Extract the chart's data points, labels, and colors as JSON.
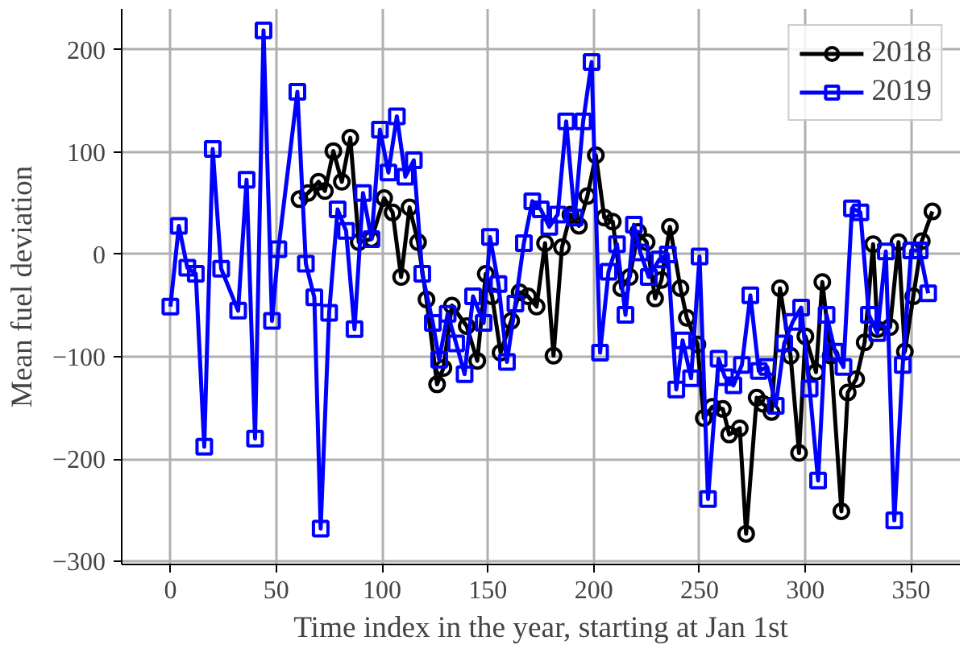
{
  "chart_data": {
    "type": "line",
    "xlabel": "Time index in the year, starting at Jan 1st",
    "ylabel": "Mean fuel deviation",
    "xlim": [
      -23,
      373
    ],
    "ylim": [
      -303,
      240
    ],
    "xticks": [
      0,
      50,
      100,
      150,
      200,
      250,
      300,
      350
    ],
    "yticks": [
      -300,
      -200,
      -100,
      0,
      100,
      200
    ],
    "grid": true,
    "legend": "top right",
    "line_style": "solid",
    "series": [
      {
        "name": "2018",
        "color": "#000000",
        "marker": "circle",
        "x": [
          61,
          65,
          70,
          73,
          77,
          81,
          85,
          89,
          95,
          101,
          105,
          109,
          113,
          117,
          121,
          126,
          129,
          133,
          140,
          145,
          149,
          152,
          156,
          161,
          165,
          169,
          173,
          177,
          181,
          185,
          189,
          193,
          197,
          201,
          205,
          209,
          213,
          217,
          221,
          225,
          229,
          232,
          236,
          241,
          244,
          249,
          252,
          256,
          261,
          264,
          269,
          272,
          277,
          280,
          284,
          288,
          293,
          297,
          300,
          305,
          308,
          312,
          317,
          320,
          324,
          328,
          332,
          334,
          340,
          344,
          347,
          351,
          355,
          360
        ],
        "values": [
          54,
          60,
          71,
          62,
          101,
          71,
          114,
          12,
          15,
          55,
          41,
          -22,
          46,
          12,
          -44,
          -127,
          -111,
          -50,
          -70,
          -104,
          -19,
          -41,
          -96,
          -65,
          -37,
          -41,
          -51,
          11,
          -99,
          7,
          39,
          28,
          57,
          97,
          36,
          32,
          -33,
          -22,
          22,
          12,
          -43,
          -25,
          27,
          -33,
          -62,
          -88,
          -160,
          -149,
          -151,
          -176,
          -170,
          -273,
          -140,
          -146,
          -154,
          -33,
          -99,
          -194,
          -80,
          -115,
          -27,
          -99,
          -251,
          -135,
          -122,
          -86,
          10,
          -73,
          -71,
          12,
          -95,
          -41,
          13,
          42
        ]
      },
      {
        "name": "2019",
        "color": "#0000ff",
        "marker": "square",
        "x": [
          0,
          4,
          8,
          12,
          16,
          20,
          24,
          32,
          36,
          40,
          44,
          48,
          51,
          60,
          64,
          68,
          71,
          75,
          79,
          83,
          87,
          91,
          95,
          99,
          103,
          107,
          111,
          115,
          119,
          124,
          127,
          131,
          135,
          139,
          143,
          148,
          151,
          155,
          159,
          163,
          167,
          171,
          175,
          179,
          183,
          187,
          191,
          195,
          199,
          203,
          207,
          211,
          215,
          219,
          222,
          226,
          231,
          235,
          239,
          242,
          246,
          250,
          254,
          259,
          262,
          266,
          270,
          274,
          278,
          282,
          286,
          290,
          294,
          298,
          302,
          306,
          310,
          314,
          318,
          322,
          326,
          330,
          334,
          338,
          342,
          346,
          350,
          354,
          358
        ],
        "values": [
          -51,
          28,
          -13,
          -19,
          -188,
          103,
          -14,
          -55,
          73,
          -180,
          219,
          -65,
          5,
          159,
          -9,
          -42,
          -268,
          -57,
          44,
          23,
          -73,
          60,
          15,
          122,
          80,
          135,
          76,
          92,
          -19,
          -67,
          -103,
          -58,
          -87,
          -117,
          -41,
          -67,
          17,
          -29,
          -105,
          -48,
          11,
          52,
          44,
          27,
          39,
          130,
          36,
          130,
          188,
          -96,
          -17,
          10,
          -59,
          29,
          2,
          -22,
          -5,
          0,
          -132,
          -84,
          -121,
          -2,
          -239,
          -102,
          -120,
          -128,
          -108,
          -40,
          -114,
          -110,
          -148,
          -87,
          -66,
          -52,
          -131,
          -221,
          -59,
          -95,
          -110,
          45,
          41,
          -59,
          -77,
          3,
          -260,
          -108,
          4,
          4,
          -38
        ]
      }
    ]
  }
}
